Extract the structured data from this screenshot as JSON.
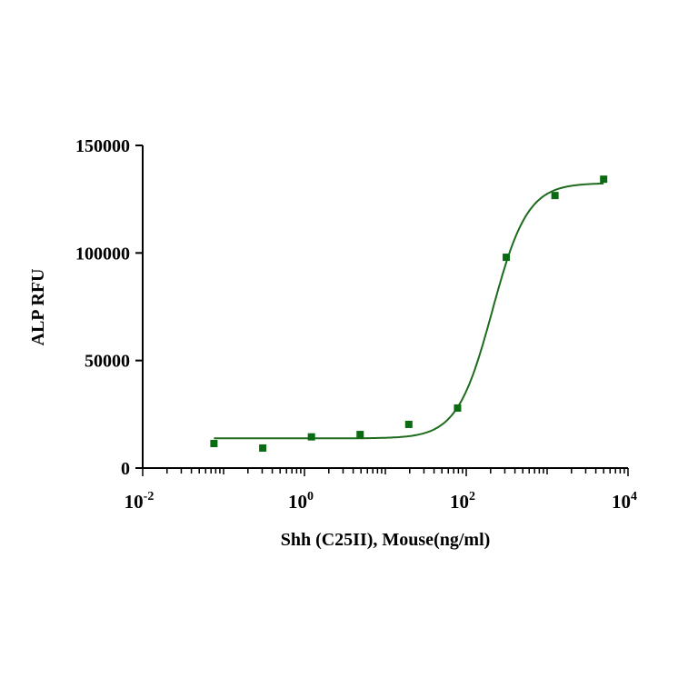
{
  "chart_data": {
    "type": "scatter",
    "title": "",
    "xlabel": "Shh (C25II), Mouse(ng/ml)",
    "ylabel": "ALP RFU",
    "xscale": "log",
    "xlim": [
      0.01,
      10000
    ],
    "ylim": [
      0,
      150000
    ],
    "xticks": [
      {
        "base": "10",
        "exp": "-2"
      },
      {
        "base": "10",
        "exp": "0"
      },
      {
        "base": "10",
        "exp": "2"
      },
      {
        "base": "10",
        "exp": "4"
      }
    ],
    "xtick_values": [
      0.01,
      1,
      100,
      10000
    ],
    "yticks": [
      "0",
      "50000",
      "100000",
      "150000"
    ],
    "ytick_values": [
      0,
      50000,
      100000,
      150000
    ],
    "series": [
      {
        "name": "Shh (C25II), Mouse",
        "color": "#0a6b12",
        "x": [
          0.076,
          0.305,
          1.22,
          4.88,
          19.5,
          78.1,
          312.5,
          1250,
          5000
        ],
        "y": [
          11400,
          9300,
          14500,
          15600,
          20300,
          27900,
          98000,
          126700,
          134300
        ]
      }
    ],
    "fit": {
      "model": "4PL",
      "bottom": 13800,
      "top": 132500,
      "ec50": 210,
      "hill": 2,
      "color": "#1e6b1e"
    },
    "grid": false
  }
}
